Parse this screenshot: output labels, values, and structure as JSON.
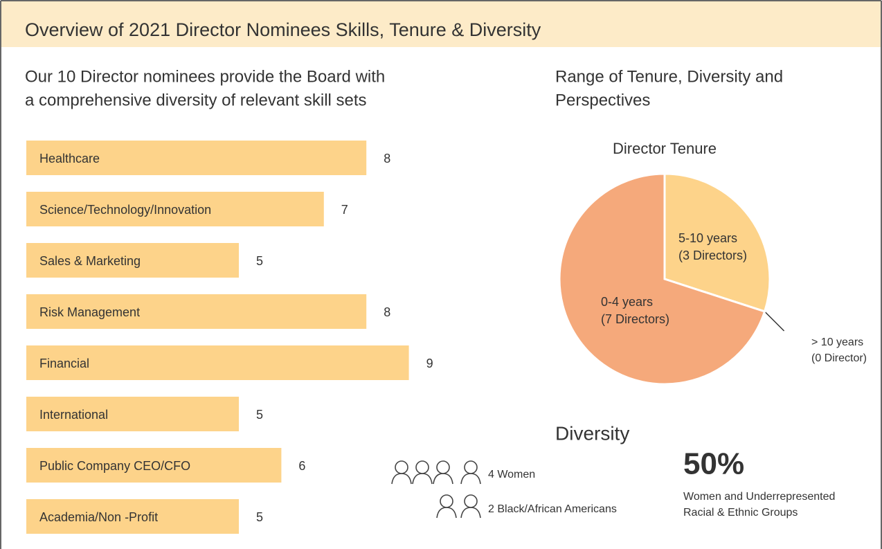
{
  "title": "Overview of 2021 Director Nominees Skills, Tenure & Diversity",
  "subtitle": [
    "Our 10 Director nominees provide the Board with",
    "a comprehensive diversity of relevant skill sets"
  ],
  "right_heading": [
    "Range of Tenure, Diversity and",
    "Perspectives"
  ],
  "diversity": {
    "heading": "Diversity",
    "women": "4 Women",
    "black": "2 Black/African Americans",
    "percent": "50%",
    "percent_caption": [
      "Women and Underrepresented",
      "Racial & Ethnic Groups"
    ]
  },
  "chart_data": [
    {
      "type": "bar",
      "categories": [
        "Healthcare",
        "Science/Technology/Innovation",
        "Sales & Marketing",
        "Risk Management",
        "Financial",
        "International",
        "Public Company CEO/CFO",
        "Academia/Non -Profit"
      ],
      "values": [
        8,
        7,
        5,
        8,
        9,
        5,
        6,
        5
      ],
      "color": "#fdd38a"
    },
    {
      "type": "pie",
      "title": "Director Tenure",
      "categories": [
        "5-10 years",
        "> 10 years",
        "0-4 years"
      ],
      "values": [
        3,
        0,
        7
      ],
      "value_labels": [
        "(3 Directors)",
        "(0 Director)",
        "(7 Directors)"
      ],
      "colors": [
        "#fdd38a",
        "#fdd38a",
        "#f5a97b"
      ]
    }
  ]
}
